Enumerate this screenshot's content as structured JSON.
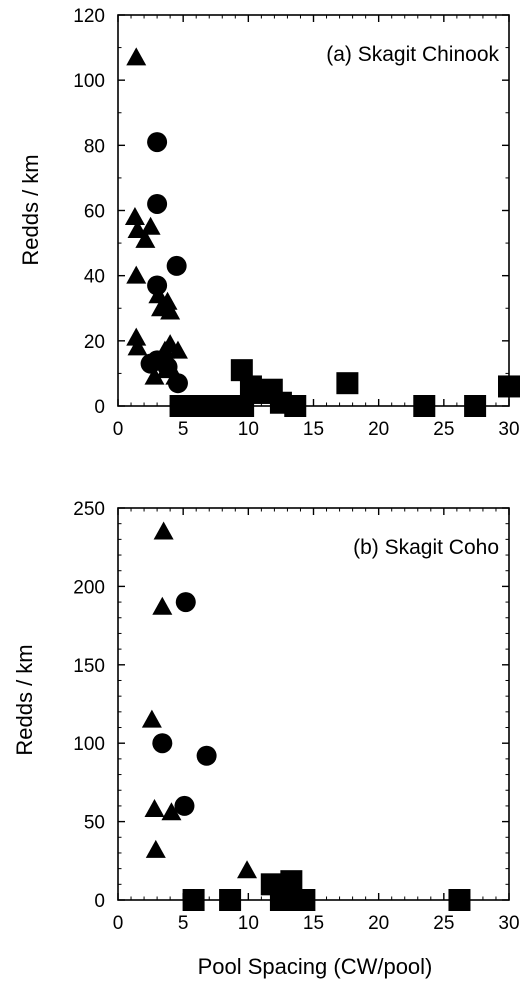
{
  "chart_data": [
    {
      "type": "scatter",
      "title": "(a) Skagit Chinook",
      "xlabel": "",
      "ylabel": "Redds / km",
      "xlim": [
        0,
        30
      ],
      "ylim": [
        0,
        120
      ],
      "xticks": [
        0,
        5,
        10,
        15,
        20,
        25,
        30
      ],
      "yticks": [
        0,
        20,
        40,
        60,
        80,
        100,
        120
      ],
      "series": [
        {
          "marker": "triangle",
          "points": [
            [
              1.4,
              107
            ],
            [
              1.3,
              58
            ],
            [
              1.5,
              54
            ],
            [
              2.1,
              51
            ],
            [
              2.5,
              55
            ],
            [
              1.4,
              40
            ],
            [
              1.4,
              21
            ],
            [
              1.5,
              18
            ],
            [
              3.1,
              34
            ],
            [
              3.3,
              30
            ],
            [
              3.8,
              32
            ],
            [
              4.0,
              29
            ],
            [
              4.0,
              19
            ],
            [
              4.6,
              17
            ],
            [
              3.6,
              17
            ],
            [
              3.7,
              11
            ],
            [
              2.8,
              9
            ],
            [
              4.4,
              9
            ]
          ]
        },
        {
          "marker": "circle",
          "points": [
            [
              3.0,
              81
            ],
            [
              3.0,
              62
            ],
            [
              3.0,
              37
            ],
            [
              4.5,
              43
            ],
            [
              2.5,
              13
            ],
            [
              3.0,
              14
            ],
            [
              3.8,
              12
            ],
            [
              4.6,
              7
            ]
          ]
        },
        {
          "marker": "square",
          "points": [
            [
              4.8,
              0
            ],
            [
              5.5,
              0
            ],
            [
              6.5,
              0
            ],
            [
              7.5,
              0
            ],
            [
              8.0,
              0
            ],
            [
              8.8,
              0
            ],
            [
              9.6,
              0
            ],
            [
              9.5,
              11
            ],
            [
              10.2,
              6
            ],
            [
              11.0,
              4
            ],
            [
              11.8,
              5
            ],
            [
              12.5,
              1
            ],
            [
              13.6,
              0
            ],
            [
              17.6,
              7
            ],
            [
              23.5,
              0
            ],
            [
              27.4,
              0
            ],
            [
              30.0,
              6
            ]
          ]
        }
      ]
    },
    {
      "type": "scatter",
      "title": "(b) Skagit Coho",
      "xlabel": "Pool Spacing (CW/pool)",
      "ylabel": "Redds / km",
      "xlim": [
        0,
        30
      ],
      "ylim": [
        0,
        250
      ],
      "xticks": [
        0,
        5,
        10,
        15,
        20,
        25,
        30
      ],
      "yticks": [
        0,
        50,
        100,
        150,
        200,
        250
      ],
      "series": [
        {
          "marker": "triangle",
          "points": [
            [
              3.5,
              235
            ],
            [
              3.4,
              187
            ],
            [
              2.6,
              115
            ],
            [
              2.8,
              58
            ],
            [
              4.1,
              56
            ],
            [
              2.9,
              32
            ],
            [
              9.9,
              19
            ]
          ]
        },
        {
          "marker": "circle",
          "points": [
            [
              5.2,
              190
            ],
            [
              3.4,
              100
            ],
            [
              6.8,
              92
            ],
            [
              5.1,
              60
            ]
          ]
        },
        {
          "marker": "square",
          "points": [
            [
              5.8,
              0
            ],
            [
              8.6,
              0
            ],
            [
              11.8,
              10
            ],
            [
              12.5,
              0
            ],
            [
              13.5,
              0
            ],
            [
              13.3,
              12
            ],
            [
              14.3,
              0
            ],
            [
              26.2,
              0
            ]
          ]
        }
      ]
    }
  ]
}
